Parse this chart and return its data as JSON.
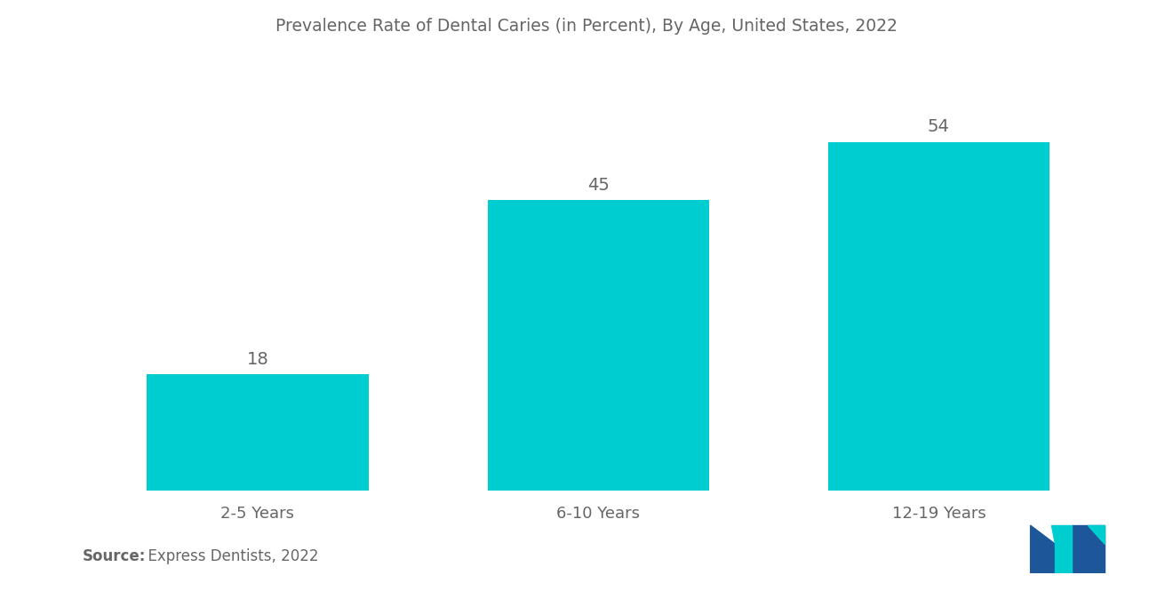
{
  "title": "Prevalence Rate of Dental Caries (in Percent), By Age, United States, 2022",
  "categories": [
    "2-5 Years",
    "6-10 Years",
    "12-19 Years"
  ],
  "values": [
    18,
    45,
    54
  ],
  "bar_color": "#00CDD0",
  "background_color": "#ffffff",
  "title_color": "#666666",
  "label_color": "#666666",
  "value_label_color": "#666666",
  "source_bold": "Source:",
  "source_rest": "  Express Dentists, 2022",
  "title_fontsize": 13.5,
  "label_fontsize": 13,
  "value_fontsize": 14,
  "source_fontsize": 12,
  "ylim": [
    0,
    65
  ],
  "bar_width": 0.65,
  "logo_navy": "#1e5799",
  "logo_teal": "#00CDD0"
}
